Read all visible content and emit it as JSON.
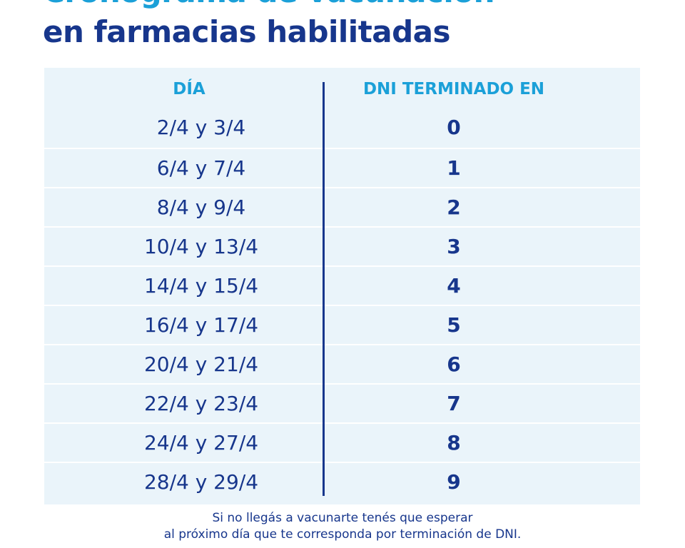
{
  "header": {
    "title_lines": [
      "Cronograma de vacunación",
      "en farmacias habilitadas"
    ]
  },
  "table": {
    "columns": [
      "DÍA",
      "DNI TERMINADO EN"
    ],
    "rows": [
      [
        "2/4 y 3/4",
        0
      ],
      [
        "6/4 y 7/4",
        1
      ],
      [
        "8/4 y 9/4",
        2
      ],
      [
        "10/4 y 13/4",
        3
      ],
      [
        "14/4 y 15/4",
        4
      ],
      [
        "16/4 y 17/4",
        5
      ],
      [
        "20/4 y 21/4",
        6
      ],
      [
        "22/4 y 23/4",
        7
      ],
      [
        "24/4 y 27/4",
        8
      ],
      [
        "28/4 y 29/4",
        9
      ]
    ]
  },
  "footer": {
    "lines": [
      "Si no llegás a vacunarte tenés que esperar",
      "al próximo día que te corresponda por terminación de DNI."
    ]
  }
}
